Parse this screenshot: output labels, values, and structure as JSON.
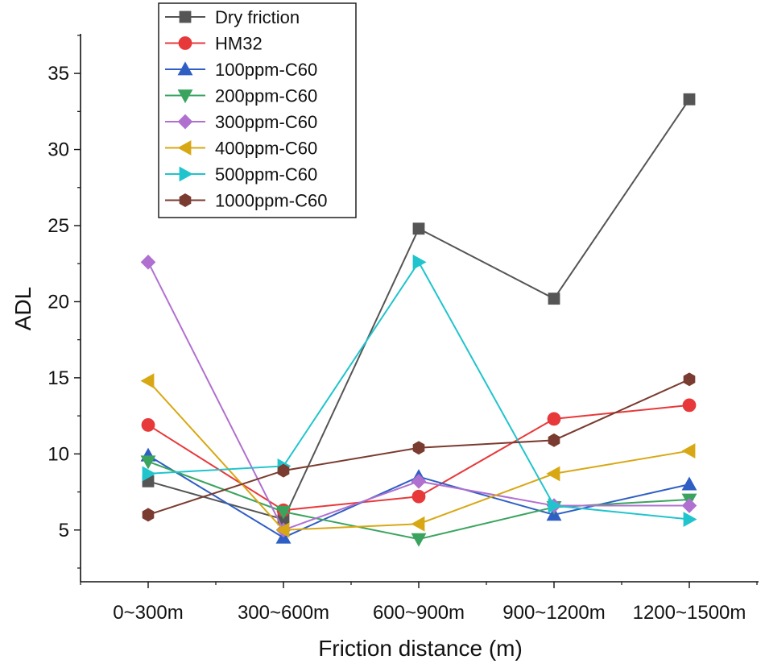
{
  "chart_data": {
    "type": "line",
    "title": "",
    "xlabel": "Friction distance (m)",
    "ylabel": "ADL",
    "categories": [
      "0~300m",
      "300~600m",
      "600~900m",
      "900~1200m",
      "1200~1500m"
    ],
    "ylim": [
      1.6,
      37.6
    ],
    "yticks": [
      5,
      10,
      15,
      20,
      25,
      30,
      35
    ],
    "ytick_labels": [
      "5",
      "10",
      "15",
      "20",
      "25",
      "30",
      "35"
    ],
    "legend_position": "top-left",
    "series": [
      {
        "name": "Dry friction",
        "color": "#555555",
        "marker": "square",
        "values": [
          8.2,
          5.7,
          24.8,
          20.2,
          33.3
        ]
      },
      {
        "name": "HM32",
        "color": "#e8393a",
        "marker": "circle",
        "values": [
          11.9,
          6.3,
          7.2,
          12.3,
          13.2
        ]
      },
      {
        "name": "100ppm-C60",
        "color": "#2f5fc4",
        "marker": "triangle-up",
        "values": [
          9.9,
          4.5,
          8.5,
          6.0,
          8.0
        ]
      },
      {
        "name": "200ppm-C60",
        "color": "#3aa45f",
        "marker": "triangle-down",
        "values": [
          9.5,
          6.2,
          4.4,
          6.5,
          7.0
        ]
      },
      {
        "name": "300ppm-C60",
        "color": "#b070d0",
        "marker": "diamond",
        "values": [
          22.6,
          5.0,
          8.2,
          6.6,
          6.6
        ]
      },
      {
        "name": "400ppm-C60",
        "color": "#d8a814",
        "marker": "triangle-left",
        "values": [
          14.8,
          5.0,
          5.4,
          8.7,
          10.2
        ]
      },
      {
        "name": "500ppm-C60",
        "color": "#20c4cc",
        "marker": "triangle-right",
        "values": [
          8.7,
          9.2,
          22.6,
          6.6,
          5.7
        ]
      },
      {
        "name": "1000ppm-C60",
        "color": "#7a3b30",
        "marker": "hexagon",
        "values": [
          6.0,
          8.9,
          10.4,
          10.9,
          14.9
        ]
      }
    ]
  }
}
